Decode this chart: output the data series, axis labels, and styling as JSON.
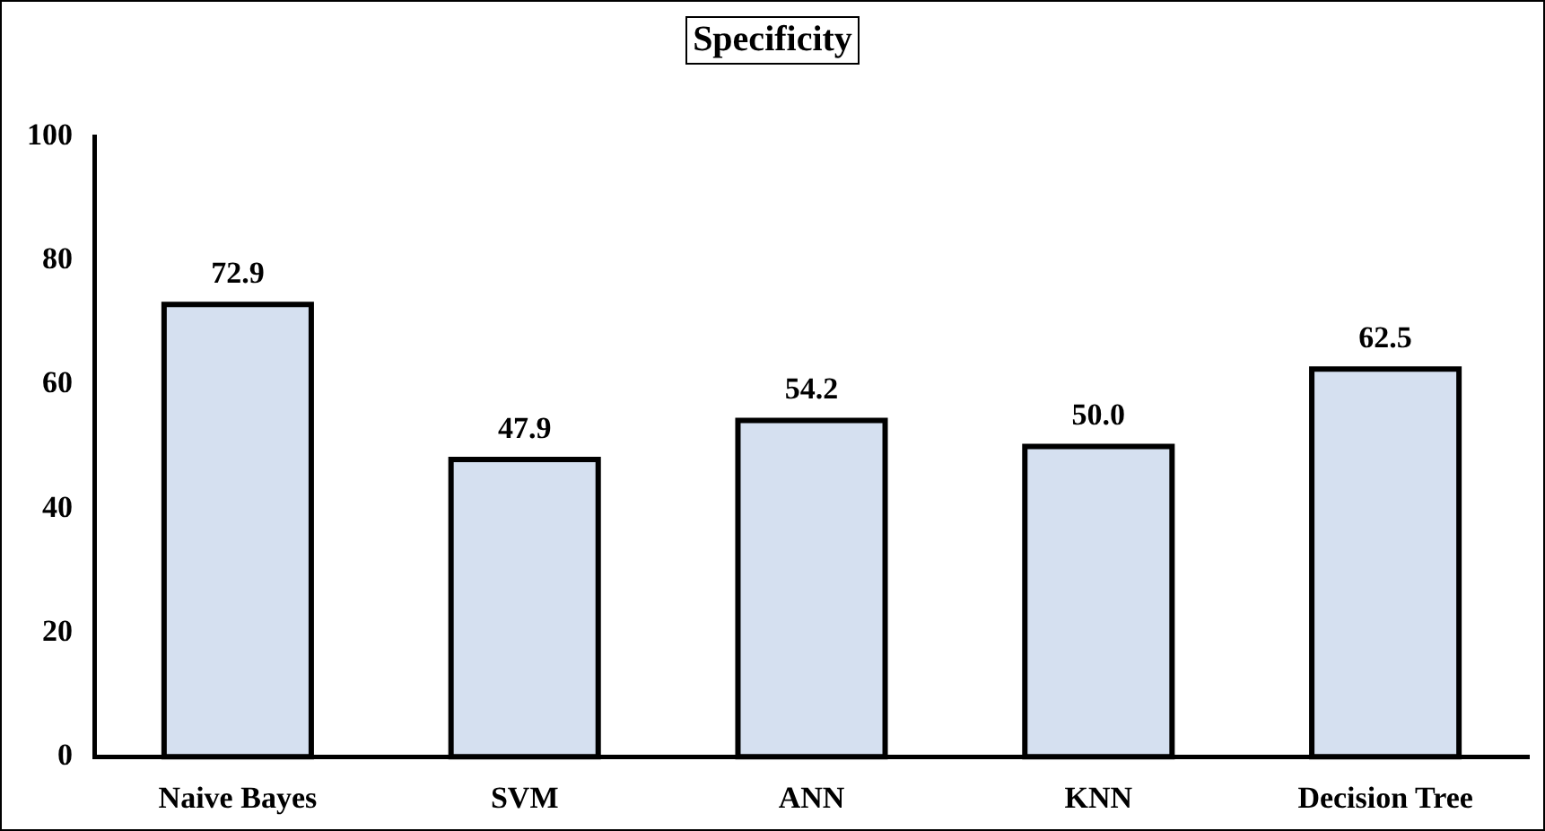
{
  "chart_data": {
    "type": "bar",
    "title": "Specificity",
    "categories": [
      "Naive Bayes",
      "SVM",
      "ANN",
      "KNN",
      "Decision Tree"
    ],
    "values": [
      72.9,
      47.9,
      54.2,
      50.0,
      62.5
    ],
    "value_labels": [
      "72.9",
      "47.9",
      "54.2",
      "50.0",
      "62.5"
    ],
    "color": "#d5e0f0",
    "ylim": [
      0,
      100
    ],
    "yticks": [
      0,
      20,
      40,
      60,
      80,
      100
    ],
    "grid": false,
    "legend": false
  }
}
